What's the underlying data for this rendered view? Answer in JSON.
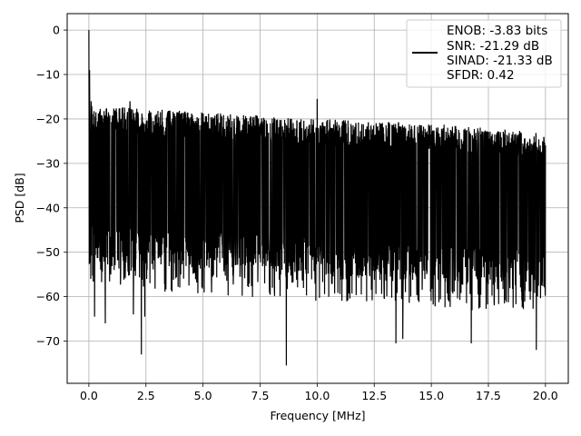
{
  "chart_data": {
    "type": "line",
    "title": "",
    "xlabel": "Frequency [MHz]",
    "ylabel": "PSD [dB]",
    "xlim": [
      -0.95,
      21.0
    ],
    "ylim": [
      -79.5,
      3.7
    ],
    "xticks": [
      0.0,
      2.5,
      5.0,
      7.5,
      10.0,
      12.5,
      15.0,
      17.5,
      20.0
    ],
    "xtick_labels": [
      "0.0",
      "2.5",
      "5.0",
      "7.5",
      "10.0",
      "12.5",
      "15.0",
      "17.5",
      "20.0"
    ],
    "yticks": [
      0,
      -10,
      -20,
      -30,
      -40,
      -50,
      -60,
      -70
    ],
    "ytick_labels": [
      "0",
      "−10",
      "−20",
      "−30",
      "−40",
      "−50",
      "−60",
      "−70"
    ],
    "grid": true,
    "legend_position": "top-right",
    "legend_entries": [
      "ENOB: -3.83 bits",
      "SNR: -21.29 dB",
      "SINAD: -21.33 dB",
      "SFDR: 0.42"
    ],
    "series": [
      {
        "color": "#000000",
        "style": "dense noise spectrum",
        "x_range": [
          0.0,
          20.0
        ],
        "upper_envelope_db": [
          [
            0.2,
            -17.0
          ],
          [
            2.0,
            -17.5
          ],
          [
            5.0,
            -18.5
          ],
          [
            10.0,
            -20.0
          ],
          [
            15.0,
            -21.0
          ],
          [
            20.0,
            -23.0
          ]
        ],
        "lower_typical_db": [
          [
            0.2,
            -52.0
          ],
          [
            10.0,
            -55.0
          ],
          [
            20.0,
            -58.0
          ]
        ],
        "peaks": [
          {
            "x": 0.0,
            "y": 0.0
          },
          {
            "x": 0.03,
            "y": -9.0
          },
          {
            "x": 0.1,
            "y": -16.0
          },
          {
            "x": 10.0,
            "y": -15.5
          },
          {
            "x": 1.8,
            "y": -16.0
          }
        ],
        "dips": [
          {
            "x": 0.25,
            "y": -64.5
          },
          {
            "x": 0.72,
            "y": -66.0
          },
          {
            "x": 1.95,
            "y": -64.0
          },
          {
            "x": 2.3,
            "y": -73.0
          },
          {
            "x": 2.45,
            "y": -64.5
          },
          {
            "x": 8.65,
            "y": -75.5
          },
          {
            "x": 13.45,
            "y": -70.5
          },
          {
            "x": 13.75,
            "y": -69.5
          },
          {
            "x": 16.75,
            "y": -70.5
          },
          {
            "x": 19.6,
            "y": -72.0
          }
        ]
      }
    ]
  }
}
